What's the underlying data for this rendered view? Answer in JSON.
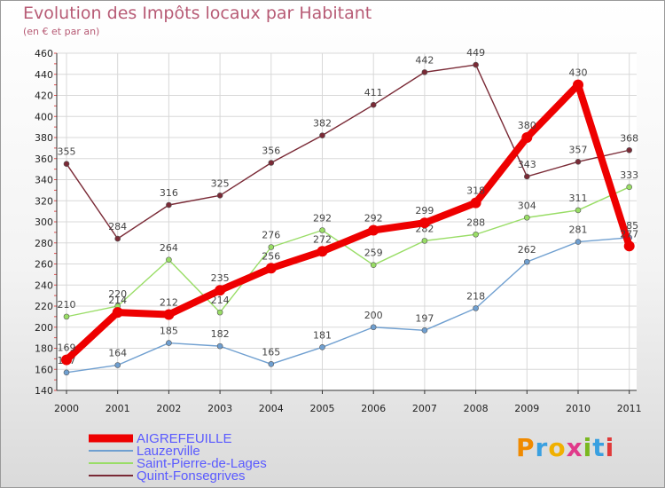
{
  "title": "Evolution des Impôts locaux par Habitant",
  "subtitle": "(en € et par an)",
  "logo": "Proxiti",
  "chart_data": {
    "type": "line",
    "categories": [
      "2000",
      "2001",
      "2002",
      "2003",
      "2004",
      "2005",
      "2006",
      "2007",
      "2008",
      "2009",
      "2010",
      "2011"
    ],
    "ylim": [
      140,
      460
    ],
    "yticks": [
      140,
      160,
      180,
      200,
      220,
      240,
      260,
      280,
      300,
      320,
      340,
      360,
      380,
      400,
      420,
      440,
      460
    ],
    "grid": true,
    "legend_position": "bottom-left",
    "series": [
      {
        "name": "AIGREFEUILLE",
        "color": "#ee0000",
        "values": [
          169,
          214,
          212,
          235,
          256,
          272,
          292,
          299,
          318,
          380,
          430,
          277
        ]
      },
      {
        "name": "Lauzerville",
        "color": "#6f9fd0",
        "values": [
          157,
          164,
          185,
          182,
          165,
          181,
          200,
          197,
          218,
          262,
          281,
          285
        ]
      },
      {
        "name": "Saint-Pierre-de-Lages",
        "color": "#99dd66",
        "values": [
          210,
          220,
          264,
          214,
          276,
          292,
          259,
          282,
          288,
          304,
          311,
          333
        ]
      },
      {
        "name": "Quint-Fonsegrives",
        "color": "#7a2a36",
        "values": [
          355,
          284,
          316,
          325,
          356,
          382,
          411,
          442,
          449,
          343,
          357,
          368
        ]
      }
    ]
  }
}
